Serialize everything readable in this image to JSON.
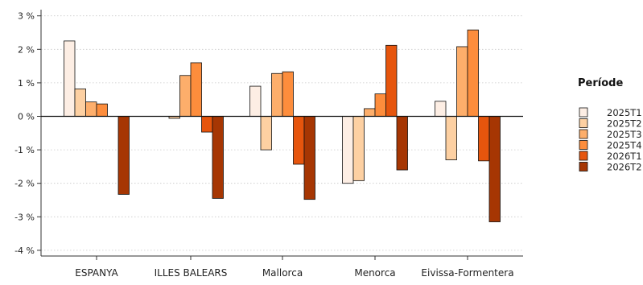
{
  "chart_data": {
    "type": "bar",
    "categories": [
      "ESPANYA",
      "ILLES BALEARS",
      "Mallorca",
      "Menorca",
      "Eivissa-Formentera"
    ],
    "series": [
      {
        "name": "2025T1",
        "color": "#fdeee4",
        "values": [
          2.25,
          0.0,
          0.9,
          -2.0,
          0.45
        ]
      },
      {
        "name": "2025T2",
        "color": "#fdd0a2",
        "values": [
          0.82,
          -0.06,
          -1.0,
          -1.92,
          -1.3
        ]
      },
      {
        "name": "2025T3",
        "color": "#fdae6b",
        "values": [
          0.43,
          1.22,
          1.28,
          0.23,
          2.08
        ]
      },
      {
        "name": "2025T4",
        "color": "#fd8d3c",
        "values": [
          0.37,
          1.6,
          1.33,
          0.67,
          2.58
        ]
      },
      {
        "name": "2026T1",
        "color": "#e6550d",
        "values": [
          0.0,
          -0.47,
          -1.43,
          2.12,
          -1.33
        ]
      },
      {
        "name": "2026T2",
        "color": "#a63603",
        "values": [
          -2.33,
          -2.45,
          -2.48,
          -1.6,
          -3.15
        ]
      }
    ],
    "yticks": [
      3,
      2,
      1,
      0,
      -1,
      -2,
      -3,
      -4
    ],
    "ytick_labels": [
      "3 %",
      "2 %",
      "1 %",
      "0 %",
      "-1 %",
      "-2 %",
      "-3 %",
      "-4 %"
    ],
    "ylim": [
      -4.2,
      3.25
    ],
    "grid": "horizontal dotted",
    "legend_title": "Període",
    "legend_position": "right"
  }
}
